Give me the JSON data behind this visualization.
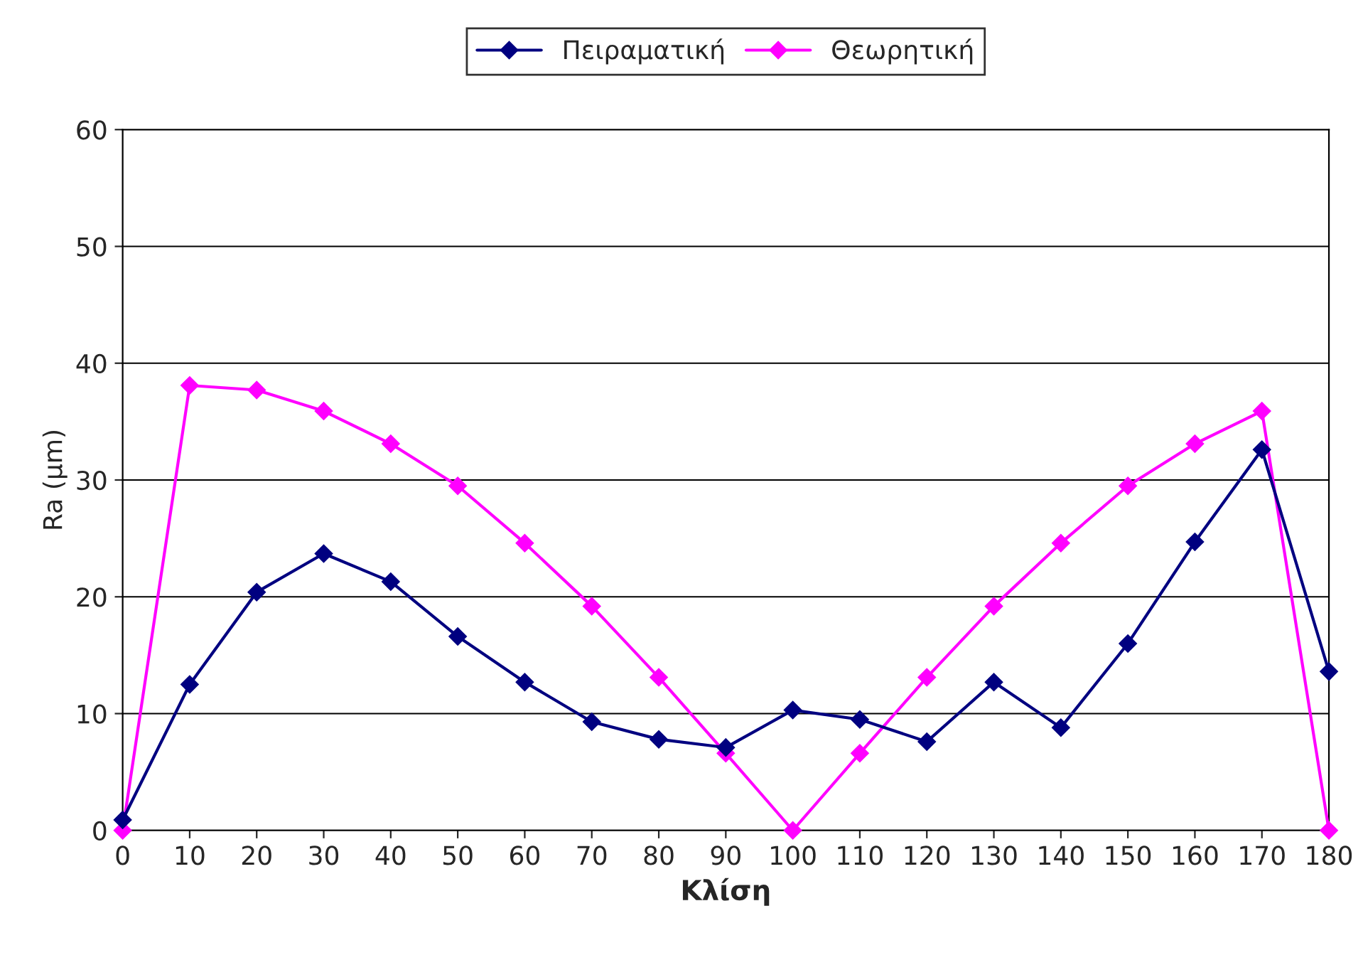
{
  "chart_data": {
    "type": "line",
    "xlabel": "Κλίση",
    "ylabel": "Ra (μm)",
    "x": [
      0,
      10,
      20,
      30,
      40,
      50,
      60,
      70,
      80,
      90,
      100,
      110,
      120,
      130,
      140,
      150,
      160,
      170,
      180
    ],
    "series": [
      {
        "name": "Πειραματική",
        "color": "#000080",
        "values": [
          0.9,
          12.5,
          20.4,
          23.7,
          21.3,
          16.6,
          12.7,
          9.3,
          7.8,
          7.1,
          10.3,
          9.5,
          7.6,
          12.7,
          8.8,
          16.0,
          24.7,
          32.6,
          13.6
        ]
      },
      {
        "name": "Θεωρητική",
        "color": "#ff00ff",
        "values": [
          0,
          38.1,
          37.7,
          35.9,
          33.1,
          29.5,
          24.6,
          19.2,
          13.1,
          6.6,
          0,
          6.6,
          13.1,
          19.2,
          24.6,
          29.5,
          33.1,
          35.9,
          0
        ]
      }
    ],
    "xlim": [
      0,
      180
    ],
    "xticks": [
      0,
      10,
      20,
      30,
      40,
      50,
      60,
      70,
      80,
      90,
      100,
      110,
      120,
      130,
      140,
      150,
      160,
      170,
      180
    ],
    "ylim": [
      0,
      60
    ],
    "yticks": [
      0,
      10,
      20,
      30,
      40,
      50,
      60
    ],
    "grid": "y",
    "legend": "top",
    "marker": "diamond",
    "line_style": "solid"
  }
}
